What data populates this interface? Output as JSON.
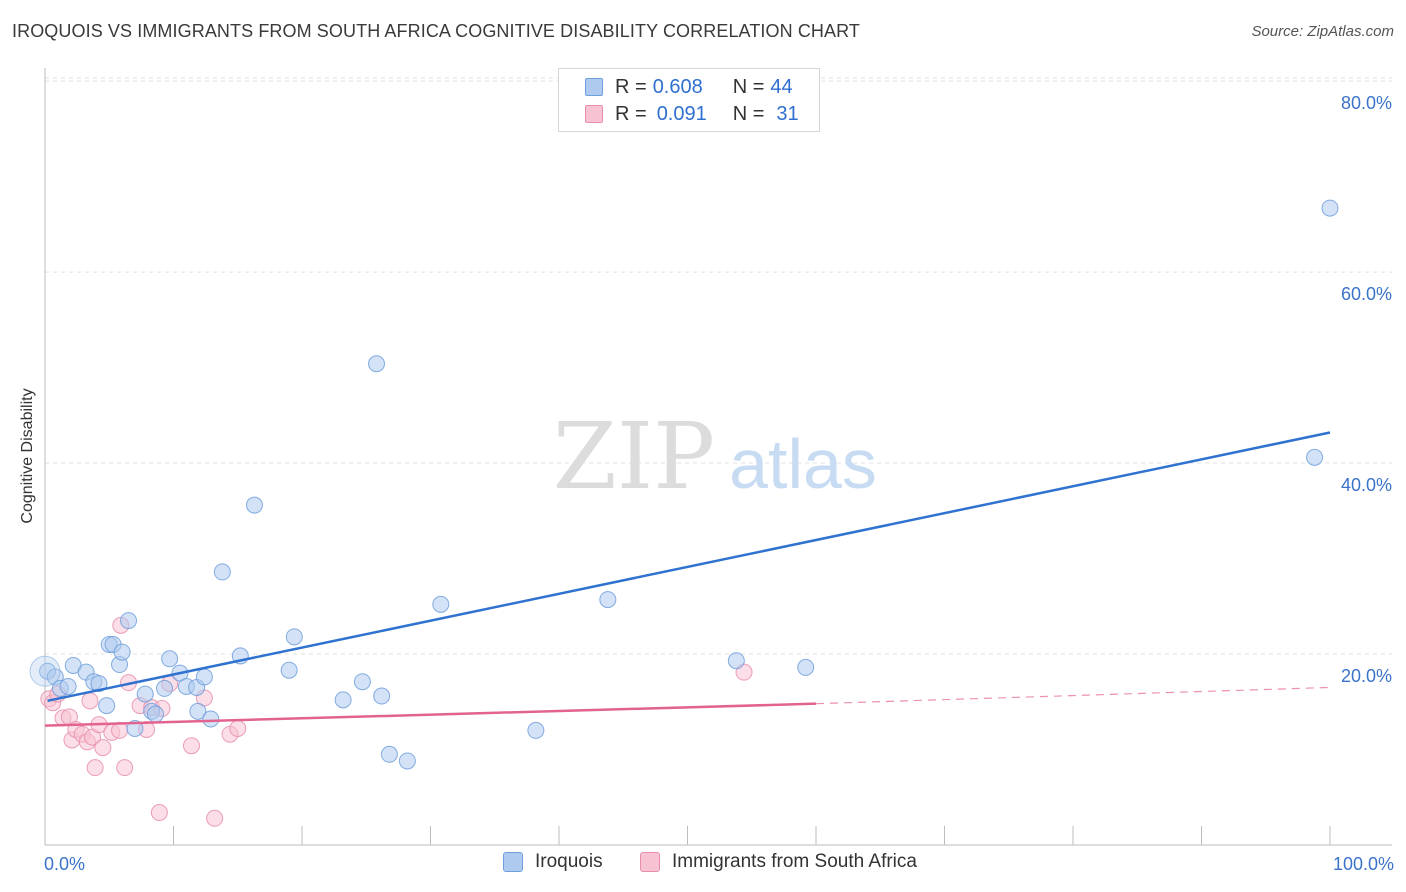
{
  "title": "IROQUOIS VS IMMIGRANTS FROM SOUTH AFRICA COGNITIVE DISABILITY CORRELATION CHART",
  "source": "Source: ZipAtlas.com",
  "watermark": {
    "part1": "ZIP",
    "part2": "atlas"
  },
  "colors": {
    "blue_fill": "#aecbef",
    "blue_stroke": "#6f9fdc",
    "blue_line": "#2f72d0",
    "pink_fill": "#f7c3d3",
    "pink_stroke": "#e88fab",
    "pink_line": "#e2638f",
    "axis_text": "#3b73c9"
  },
  "legend": {
    "rows": [
      {
        "r_label": "R =",
        "r_value": "0.608",
        "n_label": "N =",
        "n_value": "44"
      },
      {
        "r_label": "R =",
        "r_value": "0.091",
        "n_label": "N =",
        "n_value": "31"
      }
    ]
  },
  "bottom_legend": {
    "series1": "Iroquois",
    "series2": "Immigrants from South Africa"
  },
  "chart_data": {
    "type": "scatter",
    "title": "IROQUOIS VS IMMIGRANTS FROM SOUTH AFRICA COGNITIVE DISABILITY CORRELATION CHART",
    "xlabel": "",
    "ylabel": "Cognitive Disability",
    "xlim": [
      0,
      100
    ],
    "ylim": [
      0,
      82
    ],
    "x_tick_labels": [
      "0.0%",
      "100.0%"
    ],
    "y_ticks": [
      20,
      40,
      60,
      80
    ],
    "y_tick_labels": [
      "20.0%",
      "40.0%",
      "60.0%",
      "80.0%"
    ],
    "grid": true,
    "legend_position": "top-center",
    "series": [
      {
        "name": "Iroquois",
        "color": "#6f9fdc",
        "points": [
          [
            0.2,
            18.2
          ],
          [
            0.8,
            17.6
          ],
          [
            1.2,
            16.4
          ],
          [
            1.8,
            16.6
          ],
          [
            2.2,
            18.8
          ],
          [
            3.2,
            18.1
          ],
          [
            3.8,
            17.1
          ],
          [
            4.2,
            16.9
          ],
          [
            4.8,
            14.6
          ],
          [
            5.0,
            21.0
          ],
          [
            5.3,
            21.0
          ],
          [
            5.8,
            18.9
          ],
          [
            6.0,
            20.2
          ],
          [
            6.5,
            23.5
          ],
          [
            7.0,
            12.2
          ],
          [
            7.8,
            15.8
          ],
          [
            8.3,
            14.0
          ],
          [
            8.6,
            13.7
          ],
          [
            9.3,
            16.4
          ],
          [
            9.7,
            19.5
          ],
          [
            10.5,
            18.0
          ],
          [
            11.0,
            16.6
          ],
          [
            11.8,
            16.5
          ],
          [
            11.9,
            14.0
          ],
          [
            12.4,
            17.6
          ],
          [
            12.9,
            13.2
          ],
          [
            13.8,
            28.6
          ],
          [
            15.2,
            19.8
          ],
          [
            16.3,
            35.6
          ],
          [
            19.0,
            18.3
          ],
          [
            19.4,
            21.8
          ],
          [
            23.2,
            15.2
          ],
          [
            24.7,
            17.1
          ],
          [
            25.8,
            50.4
          ],
          [
            26.2,
            15.6
          ],
          [
            26.8,
            9.5
          ],
          [
            28.2,
            8.8
          ],
          [
            30.8,
            25.2
          ],
          [
            38.2,
            12.0
          ],
          [
            43.8,
            25.7
          ],
          [
            53.8,
            19.3
          ],
          [
            59.2,
            18.6
          ],
          [
            98.8,
            40.6
          ],
          [
            100.0,
            66.7
          ]
        ]
      },
      {
        "name": "Immigrants from South Africa",
        "color": "#e88fab",
        "points": [
          [
            0.3,
            15.3
          ],
          [
            0.6,
            14.9
          ],
          [
            1.0,
            15.8
          ],
          [
            1.4,
            13.3
          ],
          [
            1.9,
            13.4
          ],
          [
            2.1,
            11.0
          ],
          [
            2.4,
            12.1
          ],
          [
            2.9,
            11.6
          ],
          [
            3.3,
            10.8
          ],
          [
            3.5,
            15.1
          ],
          [
            3.7,
            11.3
          ],
          [
            3.9,
            8.1
          ],
          [
            4.2,
            12.6
          ],
          [
            4.5,
            10.2
          ],
          [
            5.2,
            11.8
          ],
          [
            5.8,
            12.0
          ],
          [
            5.9,
            23.0
          ],
          [
            6.2,
            8.1
          ],
          [
            6.5,
            17.0
          ],
          [
            7.4,
            14.6
          ],
          [
            7.9,
            12.1
          ],
          [
            8.3,
            14.4
          ],
          [
            8.9,
            3.4
          ],
          [
            9.1,
            14.3
          ],
          [
            9.7,
            16.9
          ],
          [
            11.4,
            10.4
          ],
          [
            12.4,
            15.4
          ],
          [
            13.2,
            2.8
          ],
          [
            14.4,
            11.6
          ],
          [
            15.0,
            12.2
          ],
          [
            54.4,
            18.1
          ]
        ]
      }
    ],
    "trend_lines": [
      {
        "series": "Iroquois",
        "x_start": 0.2,
        "x_end": 100.0,
        "y_start": 15.1,
        "y_end": 43.2
      },
      {
        "series": "Immigrants from South Africa",
        "x_start": 0.0,
        "x_end": 60.0,
        "y_start": 12.5,
        "y_end": 14.8,
        "dashed_to": 100.0,
        "y_dashed_end": 16.5
      }
    ]
  }
}
